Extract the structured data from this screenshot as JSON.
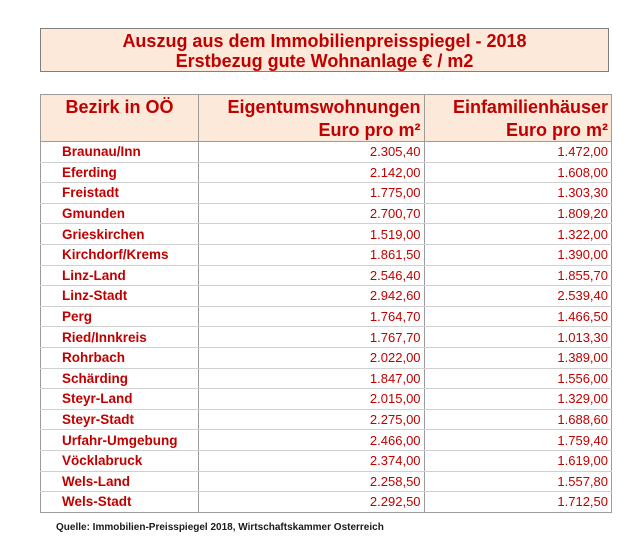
{
  "title": {
    "line1": "Auszug aus dem Immobilienpreisspiegel - 2018",
    "line2": "Erstbezug gute Wohnanlage € / m2"
  },
  "table": {
    "headers": {
      "district": "Bezirk in OÖ",
      "apartments": "Eigentumswohnungen",
      "houses": "Einfamilienhäuser",
      "unit_apartments": "Euro pro m²",
      "unit_houses": "Euro pro m²"
    },
    "rows": [
      {
        "district": "Braunau/Inn",
        "apartments": "2.305,40",
        "houses": "1.472,00"
      },
      {
        "district": "Eferding",
        "apartments": "2.142,00",
        "houses": "1.608,00"
      },
      {
        "district": "Freistadt",
        "apartments": "1.775,00",
        "houses": "1.303,30"
      },
      {
        "district": "Gmunden",
        "apartments": "2.700,70",
        "houses": "1.809,20"
      },
      {
        "district": "Grieskirchen",
        "apartments": "1.519,00",
        "houses": "1.322,00"
      },
      {
        "district": "Kirchdorf/Krems",
        "apartments": "1.861,50",
        "houses": "1.390,00"
      },
      {
        "district": "Linz-Land",
        "apartments": "2.546,40",
        "houses": "1.855,70"
      },
      {
        "district": "Linz-Stadt",
        "apartments": "2.942,60",
        "houses": "2.539,40"
      },
      {
        "district": "Perg",
        "apartments": "1.764,70",
        "houses": "1.466,50"
      },
      {
        "district": "Ried/Innkreis",
        "apartments": "1.767,70",
        "houses": "1.013,30"
      },
      {
        "district": "Rohrbach",
        "apartments": "2.022,00",
        "houses": "1.389,00"
      },
      {
        "district": "Schärding",
        "apartments": "1.847,00",
        "houses": "1.556,00"
      },
      {
        "district": "Steyr-Land",
        "apartments": "2.015,00",
        "houses": "1.329,00"
      },
      {
        "district": "Steyr-Stadt",
        "apartments": "2.275,00",
        "houses": "1.688,60"
      },
      {
        "district": "Urfahr-Umgebung",
        "apartments": "2.466,00",
        "houses": "1.759,40"
      },
      {
        "district": "Vöcklabruck",
        "apartments": "2.374,00",
        "houses": "1.619,00"
      },
      {
        "district": "Wels-Land",
        "apartments": "2.258,50",
        "houses": "1.557,80"
      },
      {
        "district": "Wels-Stadt",
        "apartments": "2.292,50",
        "houses": "1.712,50"
      }
    ]
  },
  "source": "Quelle: Immobilien-Preisspiegel 2018, Wirtschaftskammer Osterreich",
  "colors": {
    "text_red": "#c00000",
    "header_fill": "#fde9d9"
  }
}
